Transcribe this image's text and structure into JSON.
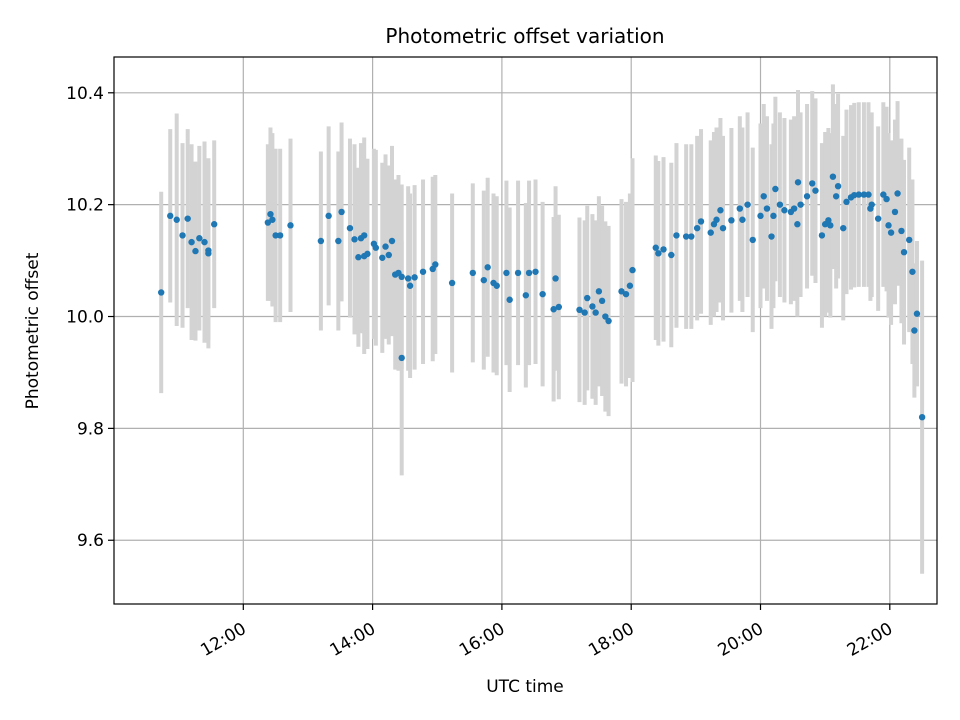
{
  "chart_data": {
    "type": "scatter",
    "title": "Photometric offset variation",
    "xlabel": "UTC time",
    "ylabel": "Photometric offset",
    "x_unit": "hours UTC",
    "xlim": [
      10.0,
      22.73
    ],
    "ylim": [
      9.486,
      10.464
    ],
    "x_ticks": [
      {
        "value": 12,
        "label": "12:00"
      },
      {
        "value": 14,
        "label": "14:00"
      },
      {
        "value": 16,
        "label": "16:00"
      },
      {
        "value": 18,
        "label": "18:00"
      },
      {
        "value": 20,
        "label": "20:00"
      },
      {
        "value": 22,
        "label": "22:00"
      }
    ],
    "y_ticks": [
      {
        "value": 9.6,
        "label": "9.6"
      },
      {
        "value": 9.8,
        "label": "9.8"
      },
      {
        "value": 10.0,
        "label": "10.0"
      },
      {
        "value": 10.2,
        "label": "10.2"
      },
      {
        "value": 10.4,
        "label": "10.4"
      }
    ],
    "grid": true,
    "colors": {
      "points": "#1f77b4",
      "errorbars": "#d3d3d3",
      "grid": "#b0b0b0"
    },
    "points": [
      [
        10.73,
        10.043,
        0.18
      ],
      [
        10.87,
        10.18,
        0.155
      ],
      [
        10.97,
        10.173,
        0.19
      ],
      [
        11.06,
        10.145,
        0.165
      ],
      [
        11.14,
        10.175,
        0.16
      ],
      [
        11.2,
        10.133,
        0.175
      ],
      [
        11.26,
        10.117,
        0.16
      ],
      [
        11.32,
        10.14,
        0.165
      ],
      [
        11.4,
        10.133,
        0.18
      ],
      [
        11.46,
        10.118,
        0.16
      ],
      [
        11.46,
        10.113,
        0.17
      ],
      [
        11.55,
        10.165,
        0.15
      ],
      [
        12.38,
        10.168,
        0.14
      ],
      [
        12.42,
        10.183,
        0.155
      ],
      [
        12.45,
        10.173,
        0.155
      ],
      [
        12.5,
        10.145,
        0.155
      ],
      [
        12.57,
        10.145,
        0.155
      ],
      [
        12.73,
        10.163,
        0.155
      ],
      [
        13.2,
        10.135,
        0.16
      ],
      [
        13.32,
        10.18,
        0.16
      ],
      [
        13.47,
        10.135,
        0.16
      ],
      [
        13.52,
        10.187,
        0.16
      ],
      [
        13.65,
        10.158,
        0.16
      ],
      [
        13.72,
        10.138,
        0.17
      ],
      [
        13.78,
        10.106,
        0.16
      ],
      [
        13.82,
        10.14,
        0.17
      ],
      [
        13.87,
        10.145,
        0.175
      ],
      [
        13.87,
        10.108,
        0.175
      ],
      [
        13.92,
        10.112,
        0.17
      ],
      [
        14.02,
        10.13,
        0.17
      ],
      [
        14.05,
        10.123,
        0.175
      ],
      [
        14.15,
        10.105,
        0.17
      ],
      [
        14.2,
        10.125,
        0.165
      ],
      [
        14.25,
        10.11,
        0.16
      ],
      [
        14.3,
        10.135,
        0.17
      ],
      [
        14.35,
        10.075,
        0.17
      ],
      [
        14.4,
        10.078,
        0.175
      ],
      [
        14.45,
        10.071,
        0.165
      ],
      [
        14.45,
        9.926,
        0.21
      ],
      [
        14.55,
        10.068,
        0.165
      ],
      [
        14.58,
        10.055,
        0.165
      ],
      [
        14.65,
        10.07,
        0.165
      ],
      [
        14.78,
        10.08,
        0.165
      ],
      [
        14.93,
        10.085,
        0.165
      ],
      [
        14.97,
        10.093,
        0.16
      ],
      [
        15.23,
        10.06,
        0.16
      ],
      [
        15.55,
        10.078,
        0.16
      ],
      [
        15.72,
        10.065,
        0.16
      ],
      [
        15.78,
        10.088,
        0.16
      ],
      [
        15.87,
        10.06,
        0.16
      ],
      [
        15.92,
        10.055,
        0.16
      ],
      [
        16.07,
        10.078,
        0.165
      ],
      [
        16.12,
        10.03,
        0.165
      ],
      [
        16.25,
        10.078,
        0.165
      ],
      [
        16.37,
        10.038,
        0.165
      ],
      [
        16.42,
        10.078,
        0.165
      ],
      [
        16.52,
        10.08,
        0.165
      ],
      [
        16.63,
        10.04,
        0.165
      ],
      [
        16.8,
        10.013,
        0.165
      ],
      [
        16.83,
        10.068,
        0.165
      ],
      [
        16.88,
        10.017,
        0.165
      ],
      [
        17.2,
        10.012,
        0.165
      ],
      [
        17.28,
        10.007,
        0.165
      ],
      [
        17.32,
        10.033,
        0.165
      ],
      [
        17.4,
        10.018,
        0.165
      ],
      [
        17.45,
        10.007,
        0.165
      ],
      [
        17.5,
        10.045,
        0.17
      ],
      [
        17.55,
        10.028,
        0.17
      ],
      [
        17.6,
        10.0,
        0.17
      ],
      [
        17.65,
        9.992,
        0.17
      ],
      [
        17.85,
        10.045,
        0.165
      ],
      [
        17.92,
        10.04,
        0.165
      ],
      [
        17.98,
        10.055,
        0.165
      ],
      [
        18.02,
        10.083,
        0.2
      ],
      [
        18.38,
        10.123,
        0.165
      ],
      [
        18.42,
        10.113,
        0.165
      ],
      [
        18.5,
        10.12,
        0.165
      ],
      [
        18.62,
        10.11,
        0.165
      ],
      [
        18.7,
        10.145,
        0.165
      ],
      [
        18.85,
        10.143,
        0.165
      ],
      [
        18.93,
        10.143,
        0.165
      ],
      [
        19.02,
        10.158,
        0.165
      ],
      [
        19.08,
        10.17,
        0.165
      ],
      [
        19.23,
        10.15,
        0.165
      ],
      [
        19.28,
        10.165,
        0.165
      ],
      [
        19.32,
        10.173,
        0.165
      ],
      [
        19.38,
        10.19,
        0.165
      ],
      [
        19.42,
        10.158,
        0.165
      ],
      [
        19.55,
        10.172,
        0.165
      ],
      [
        19.68,
        10.193,
        0.165
      ],
      [
        19.72,
        10.173,
        0.165
      ],
      [
        19.8,
        10.2,
        0.165
      ],
      [
        19.88,
        10.137,
        0.165
      ],
      [
        20.0,
        10.18,
        0.165
      ],
      [
        20.05,
        10.215,
        0.165
      ],
      [
        20.1,
        10.193,
        0.165
      ],
      [
        20.17,
        10.143,
        0.165
      ],
      [
        20.2,
        10.18,
        0.165
      ],
      [
        20.23,
        10.228,
        0.165
      ],
      [
        20.3,
        10.2,
        0.165
      ],
      [
        20.37,
        10.19,
        0.165
      ],
      [
        20.47,
        10.187,
        0.165
      ],
      [
        20.52,
        10.193,
        0.165
      ],
      [
        20.57,
        10.165,
        0.165
      ],
      [
        20.58,
        10.24,
        0.165
      ],
      [
        20.62,
        10.2,
        0.165
      ],
      [
        20.72,
        10.215,
        0.165
      ],
      [
        20.8,
        10.238,
        0.165
      ],
      [
        20.85,
        10.225,
        0.165
      ],
      [
        20.95,
        10.145,
        0.165
      ],
      [
        21.0,
        10.165,
        0.165
      ],
      [
        21.05,
        10.172,
        0.165
      ],
      [
        21.08,
        10.163,
        0.165
      ],
      [
        21.12,
        10.25,
        0.165
      ],
      [
        21.17,
        10.215,
        0.165
      ],
      [
        21.2,
        10.233,
        0.165
      ],
      [
        21.28,
        10.158,
        0.165
      ],
      [
        21.33,
        10.205,
        0.165
      ],
      [
        21.4,
        10.213,
        0.165
      ],
      [
        21.45,
        10.217,
        0.165
      ],
      [
        21.52,
        10.218,
        0.165
      ],
      [
        21.6,
        10.218,
        0.165
      ],
      [
        21.67,
        10.218,
        0.165
      ],
      [
        21.7,
        10.193,
        0.165
      ],
      [
        21.72,
        10.2,
        0.165
      ],
      [
        21.82,
        10.175,
        0.165
      ],
      [
        21.9,
        10.218,
        0.165
      ],
      [
        21.95,
        10.21,
        0.165
      ],
      [
        21.98,
        10.163,
        0.165
      ],
      [
        22.02,
        10.15,
        0.165
      ],
      [
        22.08,
        10.187,
        0.165
      ],
      [
        22.12,
        10.22,
        0.165
      ],
      [
        22.18,
        10.153,
        0.165
      ],
      [
        22.22,
        10.115,
        0.165
      ],
      [
        22.3,
        10.137,
        0.165
      ],
      [
        22.35,
        10.08,
        0.165
      ],
      [
        22.38,
        9.975,
        0.12
      ],
      [
        22.42,
        10.005,
        0.13
      ],
      [
        22.5,
        9.82,
        0.28
      ]
    ]
  }
}
